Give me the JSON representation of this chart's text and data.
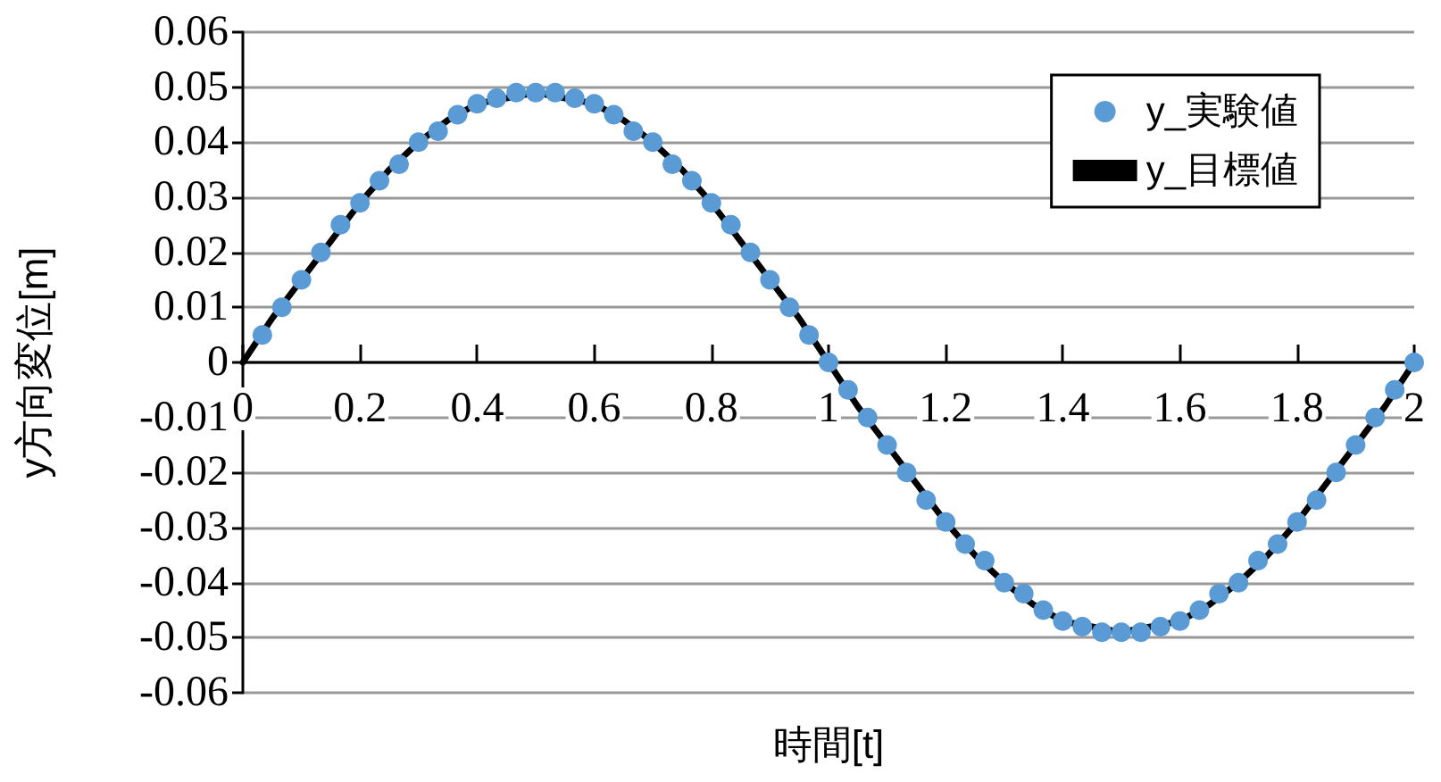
{
  "chart_data": {
    "type": "line",
    "xlabel": "時間[t]",
    "ylabel": "y方向変位[m]",
    "xlim": [
      0,
      2
    ],
    "xticks": [
      0,
      0.2,
      0.4,
      0.6,
      0.8,
      1,
      1.2,
      1.4,
      1.6,
      1.8,
      2
    ],
    "ylim": [
      -0.06,
      0.06
    ],
    "yticks": [
      -0.06,
      -0.05,
      -0.04,
      -0.03,
      -0.02,
      -0.01,
      0,
      0.01,
      0.02,
      0.03,
      0.04,
      0.05,
      0.06
    ],
    "grid": "y",
    "legend": "top right",
    "series": [
      {
        "name": "y_実験値",
        "type": "scatter",
        "marker": "circle",
        "color": "#5b9bd5",
        "x": [
          0.0333,
          0.0667,
          0.1,
          0.1333,
          0.1667,
          0.2,
          0.2333,
          0.2667,
          0.3,
          0.3333,
          0.3667,
          0.4,
          0.4333,
          0.4667,
          0.5,
          0.5333,
          0.5667,
          0.6,
          0.6333,
          0.6667,
          0.7,
          0.7333,
          0.7667,
          0.8,
          0.8333,
          0.8667,
          0.9,
          0.9333,
          0.9667,
          1,
          1.0333,
          1.0667,
          1.1,
          1.1333,
          1.1667,
          1.2,
          1.2333,
          1.2667,
          1.3,
          1.3333,
          1.3667,
          1.4,
          1.4333,
          1.4667,
          1.5,
          1.5333,
          1.5667,
          1.6,
          1.6333,
          1.6667,
          1.7,
          1.7333,
          1.7667,
          1.8,
          1.8333,
          1.8667,
          1.9,
          1.9333,
          1.9667,
          2
        ],
        "values": [
          0.005,
          0.01,
          0.015,
          0.02,
          0.025,
          0.029,
          0.033,
          0.036,
          0.04,
          0.042,
          0.045,
          0.047,
          0.048,
          0.049,
          0.049,
          0.049,
          0.048,
          0.047,
          0.045,
          0.042,
          0.04,
          0.036,
          0.033,
          0.029,
          0.025,
          0.02,
          0.015,
          0.01,
          0.005,
          0,
          -0.005,
          -0.01,
          -0.015,
          -0.02,
          -0.025,
          -0.029,
          -0.033,
          -0.036,
          -0.04,
          -0.042,
          -0.045,
          -0.047,
          -0.048,
          -0.049,
          -0.049,
          -0.049,
          -0.048,
          -0.047,
          -0.045,
          -0.042,
          -0.04,
          -0.036,
          -0.033,
          -0.029,
          -0.025,
          -0.02,
          -0.015,
          -0.01,
          -0.005,
          0
        ]
      },
      {
        "name": "y_目標値",
        "type": "line",
        "marker": "none",
        "line_style": "solid",
        "color": "#000000",
        "x": [
          0,
          0.05,
          0.1,
          0.15,
          0.2,
          0.25,
          0.3,
          0.35,
          0.4,
          0.45,
          0.5,
          0.55,
          0.6,
          0.65,
          0.7,
          0.75,
          0.8,
          0.85,
          0.9,
          0.95,
          1,
          1.05,
          1.1,
          1.15,
          1.2,
          1.25,
          1.3,
          1.35,
          1.4,
          1.45,
          1.5,
          1.55,
          1.6,
          1.65,
          1.7,
          1.75,
          1.8,
          1.85,
          1.9,
          1.95,
          2
        ],
        "values": [
          0,
          0.008,
          0.015,
          0.022,
          0.029,
          0.035,
          0.04,
          0.044,
          0.047,
          0.048,
          0.049,
          0.048,
          0.047,
          0.044,
          0.04,
          0.035,
          0.029,
          0.022,
          0.015,
          0.008,
          0,
          -0.008,
          -0.015,
          -0.022,
          -0.029,
          -0.035,
          -0.04,
          -0.044,
          -0.047,
          -0.048,
          -0.049,
          -0.048,
          -0.047,
          -0.044,
          -0.04,
          -0.035,
          -0.029,
          -0.022,
          -0.015,
          -0.008,
          0
        ]
      }
    ]
  }
}
